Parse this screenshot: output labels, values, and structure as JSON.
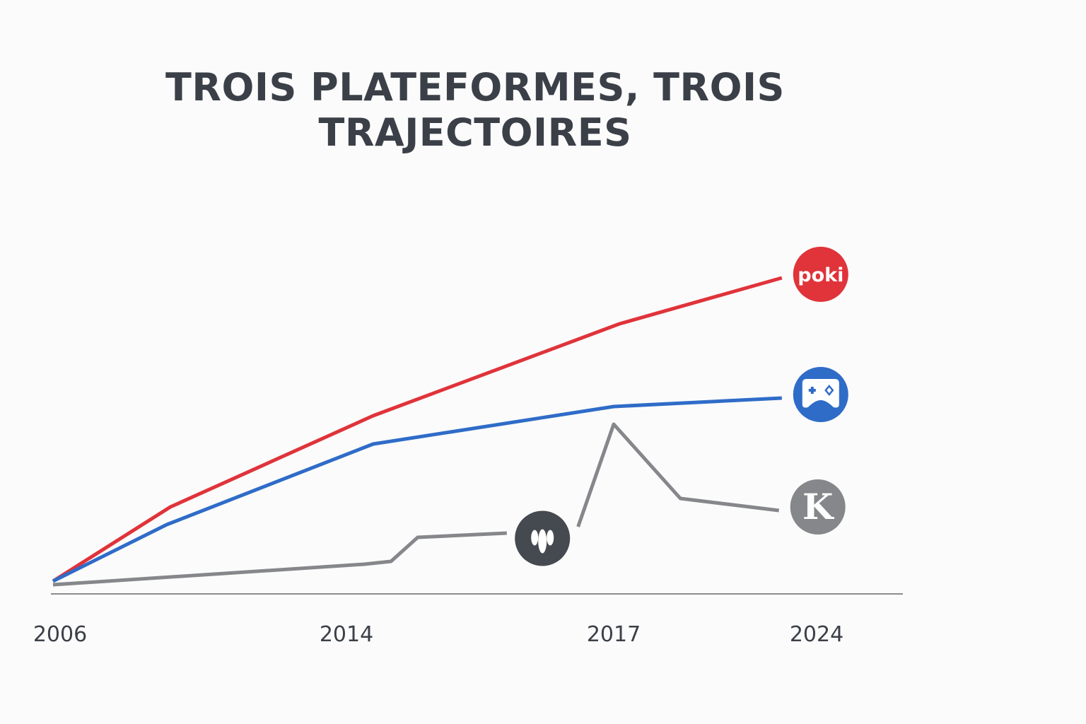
{
  "chart_data": {
    "type": "line",
    "title": "TROIS PLATEFORMES, TROIS TRAJECTOIRES",
    "xlabel": "",
    "ylabel": "",
    "x_ticks": [
      "2006",
      "2014",
      "2017",
      "2024"
    ],
    "y_axis_shown": false,
    "ylim": [
      0,
      100
    ],
    "grid": false,
    "legend": "icons at line ends (right)",
    "series": [
      {
        "icon": "poki-logo",
        "icon_text": "poki",
        "color": "#e0333a",
        "x": [
          2006,
          2009.2,
          2014.3,
          2017.2,
          2022.8
        ],
        "y": [
          3.6,
          24.6,
          50.4,
          76.4,
          89.4
        ]
      },
      {
        "icon": "gamepad-logo",
        "color": "#2f6cc8",
        "x": [
          2006,
          2009.1,
          2014.3,
          2017,
          2022.8
        ],
        "y": [
          3.6,
          19.6,
          42.4,
          53,
          55.4
        ]
      },
      {
        "icon": "k-logo",
        "icon_text": "K",
        "color": "#86878b",
        "x": [
          2006,
          2014.2,
          2014.5,
          2014.8,
          2015.8,
          2016.6,
          2017,
          2019.3,
          2022.7
        ],
        "y": [
          2.6,
          8.4,
          9.2,
          16,
          17.2,
          19,
          48,
          27,
          23.6
        ],
        "gap_after_index": 4,
        "mid_icon": "flame-logo",
        "mid_icon_color": "#454950"
      }
    ]
  }
}
